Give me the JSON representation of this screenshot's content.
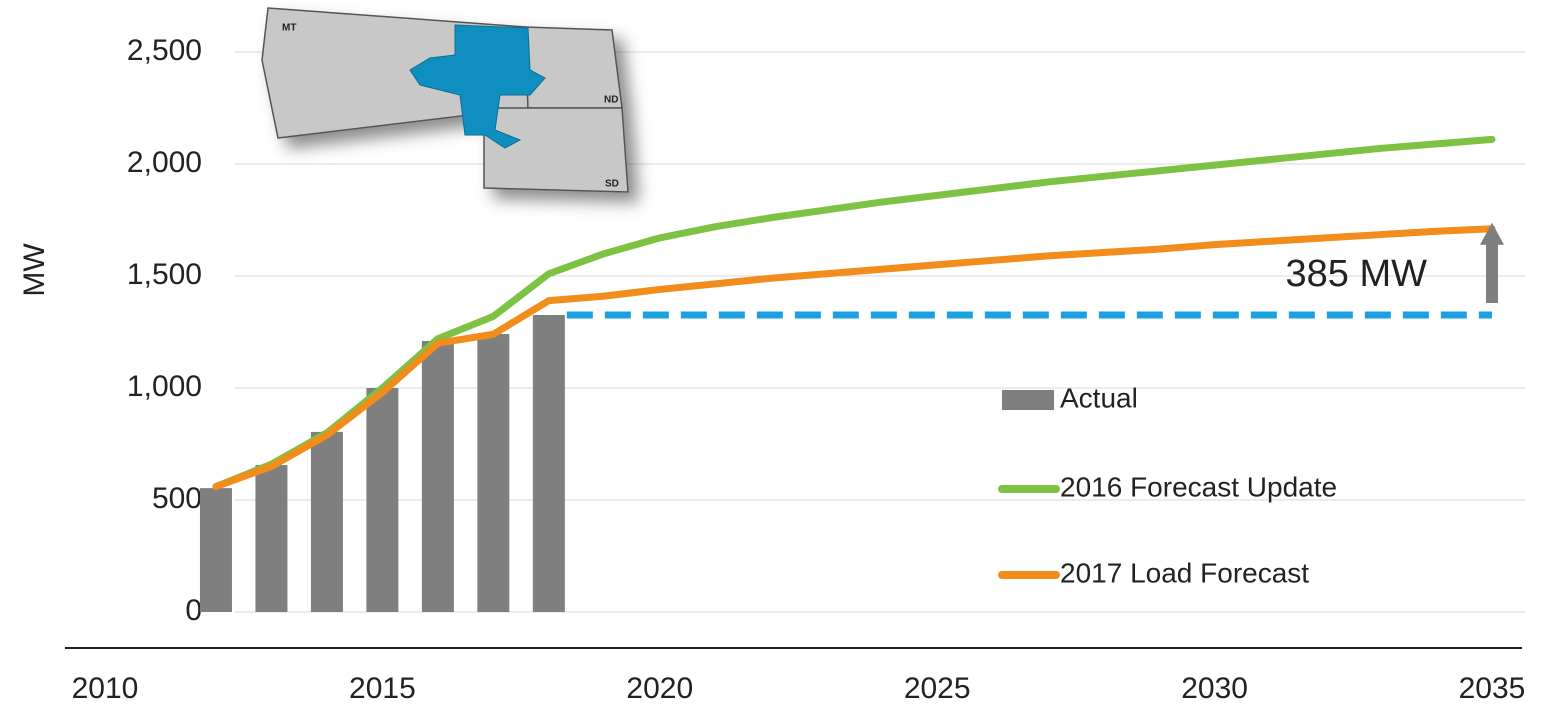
{
  "chart_data": {
    "type": "bar_line",
    "y_label": "MW",
    "xlim": [
      2010,
      2035
    ],
    "xticks": [
      2010,
      2015,
      2020,
      2025,
      2030,
      2035
    ],
    "ylim": [
      0,
      2500
    ],
    "yticks": [
      0,
      {
        "value": 500,
        "label": "500"
      },
      {
        "value": 1000,
        "label": "1,000"
      },
      {
        "value": 1500,
        "label": "1,500"
      },
      {
        "value": 2000,
        "label": "2,000"
      },
      {
        "value": 2500,
        "label": "2,500"
      }
    ],
    "grid": true,
    "series": [
      {
        "name": "Actual",
        "kind": "bar",
        "color": "#7f7f7f",
        "x": [
          2012,
          2013,
          2014,
          2015,
          2016,
          2017,
          2018
        ],
        "values": [
          553,
          656,
          804,
          1000,
          1210,
          1241,
          1326
        ]
      },
      {
        "name": "2016 Forecast Update",
        "kind": "line",
        "color": "#7dc242",
        "x": [
          2012,
          2013,
          2014,
          2015,
          2016,
          2017,
          2018,
          2019,
          2020,
          2021,
          2022,
          2023,
          2024,
          2025,
          2026,
          2027,
          2028,
          2029,
          2030,
          2031,
          2032,
          2033,
          2034,
          2035
        ],
        "values": [
          560,
          660,
          800,
          1000,
          1220,
          1320,
          1510,
          1600,
          1670,
          1720,
          1760,
          1795,
          1830,
          1860,
          1890,
          1920,
          1945,
          1970,
          1995,
          2020,
          2045,
          2070,
          2090,
          2110
        ]
      },
      {
        "name": "2017 Load Forecast",
        "kind": "line",
        "color": "#f28c1b",
        "x": [
          2012,
          2013,
          2014,
          2015,
          2016,
          2017,
          2018,
          2019,
          2020,
          2021,
          2022,
          2023,
          2024,
          2025,
          2026,
          2027,
          2028,
          2029,
          2030,
          2031,
          2032,
          2033,
          2034,
          2035
        ],
        "values": [
          560,
          650,
          790,
          980,
          1200,
          1240,
          1390,
          1410,
          1440,
          1465,
          1490,
          1510,
          1530,
          1550,
          1570,
          1590,
          1605,
          1620,
          1640,
          1655,
          1670,
          1685,
          1700,
          1711
        ]
      }
    ],
    "reference_line": {
      "value": 1326,
      "x": [
        2018,
        2035
      ],
      "color": "#1ba1e2"
    },
    "annotation": {
      "text": "385 MW",
      "x": 2035,
      "from": 1326,
      "to": 1711,
      "color": "#7f7f7f"
    },
    "map_labels": [
      "MT",
      "ND",
      "SD"
    ]
  }
}
